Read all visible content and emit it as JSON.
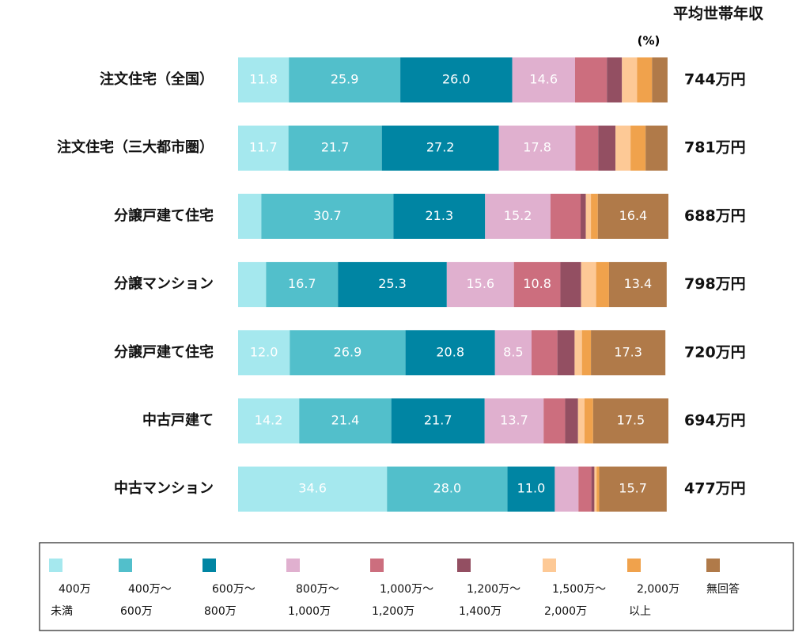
{
  "chart_data": {
    "type": "stacked-bar",
    "orientation": "horizontal",
    "total_header": "平均世帯年収",
    "unit": "(%)",
    "categories": [
      "注文住宅（全国）",
      "注文住宅（三大都市圏）",
      "分譲戸建て住宅",
      "分譲マンション",
      "分譲戸建て住宅",
      "中古戸建て",
      "中古マンション"
    ],
    "totals": [
      "744万円",
      "781万円",
      "688万円",
      "798万円",
      "720万円",
      "694万円",
      "477万円"
    ],
    "xlim": [
      0,
      100
    ],
    "series": [
      {
        "name": "400万\n未満",
        "color": "#a5e8ee",
        "values": [
          11.8,
          11.7,
          5.4,
          6.5,
          12.0,
          14.2,
          34.6
        ],
        "value_labels": [
          "11.8",
          "11.7",
          null,
          null,
          "12.0",
          "14.2",
          "34.6"
        ]
      },
      {
        "name": "400万～\n600万",
        "color": "#52bfcb",
        "values": [
          25.9,
          21.7,
          30.7,
          16.7,
          26.9,
          21.4,
          28.0
        ],
        "value_labels": [
          "25.9",
          "21.7",
          "30.7",
          "16.7",
          "26.9",
          "21.4",
          "28.0"
        ]
      },
      {
        "name": "600万～\n800万",
        "color": "#0085a3",
        "values": [
          26.0,
          27.2,
          21.3,
          25.3,
          20.8,
          21.7,
          11.0
        ],
        "value_labels": [
          "26.0",
          "27.2",
          "21.3",
          "25.3",
          "20.8",
          "21.7",
          "11.0"
        ]
      },
      {
        "name": "800万～\n1,000万",
        "color": "#e0b0cf",
        "values": [
          14.6,
          17.8,
          15.2,
          15.6,
          8.5,
          13.7,
          5.5
        ],
        "value_labels": [
          "14.6",
          "17.8",
          "15.2",
          "15.6",
          "8.5",
          "13.7",
          null
        ]
      },
      {
        "name": "1,000万～\n1,200万",
        "color": "#cc6e7e",
        "values": [
          7.4,
          5.3,
          7.0,
          10.8,
          6.0,
          5.0,
          3.0
        ],
        "value_labels": [
          null,
          null,
          null,
          "10.8",
          null,
          null,
          null
        ]
      },
      {
        "name": "1,200万～\n1,400万",
        "color": "#934f62",
        "values": [
          3.5,
          4.0,
          1.2,
          4.8,
          4.0,
          3.0,
          0.7
        ]
      },
      {
        "name": "1,500万～\n2,000万",
        "color": "#fdc996",
        "values": [
          3.5,
          3.5,
          1.2,
          3.5,
          1.7,
          1.5,
          0.5
        ]
      },
      {
        "name": "2,000万\n以上",
        "color": "#f0a24c",
        "values": [
          3.5,
          3.5,
          1.6,
          3.0,
          2.1,
          2.0,
          0.6
        ]
      },
      {
        "name": "無回答",
        "color": "#b07a49",
        "values": [
          3.6,
          5.1,
          16.4,
          13.4,
          17.3,
          17.5,
          15.7
        ],
        "value_labels": [
          null,
          null,
          "16.4",
          "13.4",
          "17.3",
          "17.5",
          "15.7"
        ]
      }
    ]
  }
}
